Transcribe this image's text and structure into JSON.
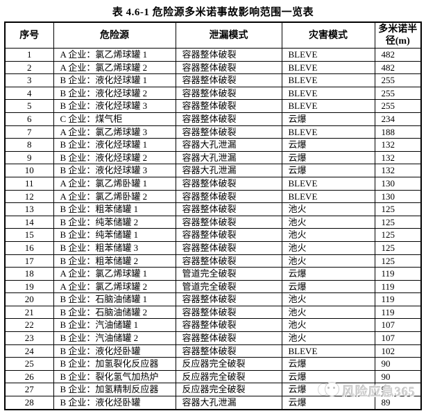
{
  "title": "表 4.6-1 危险源多米诺事故影响范围一览表",
  "table": {
    "headers": [
      "序号",
      "危险源",
      "泄漏模式",
      "灾害模式",
      "多米诺半径(m)"
    ],
    "rows": [
      [
        "1",
        "A 企业：氯乙烯球罐 1",
        "容器整体破裂",
        "BLEVE",
        "482"
      ],
      [
        "2",
        "A 企业：氯乙烯球罐 2",
        "容器整体破裂",
        "BLEVE",
        "482"
      ],
      [
        "3",
        "B 企业：液化烃球罐 1",
        "容器整体破裂",
        "BLEVE",
        "255"
      ],
      [
        "4",
        "B 企业：液化烃球罐 2",
        "容器整体破裂",
        "BLEVE",
        "255"
      ],
      [
        "5",
        "B 企业：液化烃球罐 3",
        "容器整体破裂",
        "BLEVE",
        "255"
      ],
      [
        "6",
        "C 企业：煤气柜",
        "容器整体破裂",
        "云爆",
        "234"
      ],
      [
        "7",
        "A 企业：氯乙烯球罐 3",
        "容器整体破裂",
        "BLEVE",
        "188"
      ],
      [
        "8",
        "B 企业：液化烃球罐 1",
        "容器大孔泄漏",
        "云爆",
        "132"
      ],
      [
        "9",
        "B 企业：液化烃球罐 2",
        "容器大孔泄漏",
        "云爆",
        "132"
      ],
      [
        "10",
        "B 企业：液化烃球罐 3",
        "容器大孔泄漏",
        "云爆",
        "132"
      ],
      [
        "11",
        "A 企业：氯乙烯卧罐 1",
        "容器整体破裂",
        "BLEVE",
        "130"
      ],
      [
        "12",
        "A 企业：氯乙烯卧罐 2",
        "容器整体破裂",
        "BLEVE",
        "130"
      ],
      [
        "13",
        "B 企业：粗苯储罐 1",
        "容器整体破裂",
        "池火",
        "125"
      ],
      [
        "14",
        "B 企业：纯苯储罐 2",
        "容器整体破裂",
        "池火",
        "125"
      ],
      [
        "15",
        "B 企业：纯苯储罐 1",
        "容器整体破裂",
        "池火",
        "125"
      ],
      [
        "16",
        "B 企业：粗苯储罐 3",
        "容器整体破裂",
        "池火",
        "125"
      ],
      [
        "17",
        "B 企业：粗苯储罐 2",
        "容器整体破裂",
        "池火",
        "125"
      ],
      [
        "18",
        "A 企业：氯乙烯球罐 1",
        "管道完全破裂",
        "云爆",
        "119"
      ],
      [
        "19",
        "A 企业：氯乙烯球罐 2",
        "管道完全破裂",
        "云爆",
        "119"
      ],
      [
        "20",
        "B 企业：石脑油储罐 1",
        "容器整体破裂",
        "池火",
        "119"
      ],
      [
        "21",
        "B 企业：石脑油储罐 2",
        "容器整体破裂",
        "池火",
        "119"
      ],
      [
        "22",
        "B 企业：汽油储罐 1",
        "容器整体破裂",
        "池火",
        "107"
      ],
      [
        "23",
        "B 企业：汽油储罐 2",
        "容器整体破裂",
        "池火",
        "107"
      ],
      [
        "24",
        "B 企业：液化烃卧罐",
        "容器整体破裂",
        "BLEVE",
        "102"
      ],
      [
        "25",
        "B 企业：加氢裂化反应器",
        "反应器完全破裂",
        "云爆",
        "90"
      ],
      [
        "26",
        "B 企业：裂化氢气加热炉",
        "反应器完全破裂",
        "云爆",
        "90"
      ],
      [
        "27",
        "B 企业：加氢精制反应器",
        "反应器完全破裂",
        "云爆",
        "90"
      ],
      [
        "28",
        "B 企业：液化烃卧罐",
        "容器大孔泄漏",
        "云爆",
        "89"
      ]
    ]
  },
  "watermark": {
    "text": "风险应急365",
    "logo": "mascot-face-icon",
    "color": "#d2d2d2"
  },
  "colors": {
    "background": "#ffffff",
    "text": "#000000",
    "border": "#000000"
  }
}
